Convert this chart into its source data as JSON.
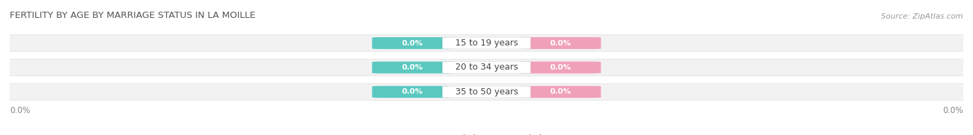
{
  "title": "FERTILITY BY AGE BY MARRIAGE STATUS IN LA MOILLE",
  "source": "Source: ZipAtlas.com",
  "categories": [
    "15 to 19 years",
    "20 to 34 years",
    "35 to 50 years"
  ],
  "married_values": [
    "0.0%",
    "0.0%",
    "0.0%"
  ],
  "unmarried_values": [
    "0.0%",
    "0.0%",
    "0.0%"
  ],
  "married_color": "#5bc8c0",
  "unmarried_color": "#f0a0b8",
  "bar_bg_color": "#f2f2f2",
  "bar_bg_edge": "#dedede",
  "title_fontsize": 9.5,
  "source_fontsize": 8,
  "label_fontsize": 8.5,
  "badge_fontsize": 8,
  "cat_fontsize": 9,
  "axis_label_left": "0.0%",
  "axis_label_right": "0.0%",
  "background_color": "#ffffff",
  "bar_height": 0.62,
  "xlim": [
    -1,
    1
  ],
  "n_bars": 3
}
